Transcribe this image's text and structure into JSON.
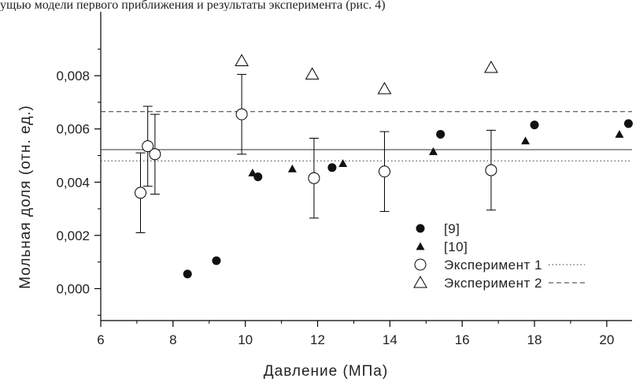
{
  "page": {
    "cropped_text": "ущью модели первого приближения и результаты эксперимента (рис. 4)"
  },
  "chart_data": {
    "type": "scatter",
    "xlabel": "Давление (МПа)",
    "ylabel": "Мольная доля (отн. ед.)",
    "xlim": [
      6,
      20.7
    ],
    "ylim": [
      -0.0012,
      0.0104
    ],
    "x_ticks": [
      6,
      8,
      10,
      12,
      14,
      16,
      18,
      20
    ],
    "x_tick_labels": [
      "6",
      "8",
      "10",
      "12",
      "14",
      "16",
      "18",
      "20"
    ],
    "y_ticks": [
      0.0,
      0.002,
      0.004,
      0.006,
      0.008
    ],
    "y_tick_labels": [
      "0,000",
      "0,002",
      "0,004",
      "0,006",
      "0,008"
    ],
    "grid": false,
    "legend_position": "bottom-right",
    "series": [
      {
        "name": "[9]",
        "marker": "filled-circle",
        "color": "#000000",
        "x": [
          8.4,
          9.2,
          10.35,
          12.4,
          15.4,
          18.0,
          20.6
        ],
        "y": [
          0.00055,
          0.00105,
          0.0042,
          0.00455,
          0.0058,
          0.00615,
          0.0062
        ]
      },
      {
        "name": "[10]",
        "marker": "filled-triangle",
        "color": "#000000",
        "x": [
          10.2,
          11.3,
          12.7,
          15.2,
          17.75,
          20.35
        ],
        "y": [
          0.00435,
          0.0045,
          0.0047,
          0.00515,
          0.00555,
          0.0058
        ]
      },
      {
        "name": "Эксперимент 1",
        "marker": "open-circle",
        "color": "#000000",
        "x": [
          7.1,
          7.3,
          7.5,
          9.9,
          11.9,
          13.85,
          16.8
        ],
        "y": [
          0.0036,
          0.00535,
          0.00505,
          0.00655,
          0.00415,
          0.0044,
          0.00445
        ],
        "err_low": [
          0.0021,
          0.00385,
          0.00355,
          0.00505,
          0.00265,
          0.0029,
          0.00295
        ],
        "err_high": [
          0.0051,
          0.00685,
          0.00655,
          0.00805,
          0.00565,
          0.0059,
          0.00595
        ],
        "reference_line": {
          "style": "dotted",
          "y": 0.0048
        }
      },
      {
        "name": "Эксперимент 2",
        "marker": "open-triangle",
        "color": "#000000",
        "x": [
          9.9,
          11.85,
          13.85,
          16.8
        ],
        "y": [
          0.00855,
          0.00805,
          0.0075,
          0.0083
        ],
        "reference_line": {
          "style": "dashed",
          "y": 0.00665
        }
      }
    ],
    "reference_lines": [
      {
        "style": "solid",
        "y": 0.00522
      }
    ]
  }
}
